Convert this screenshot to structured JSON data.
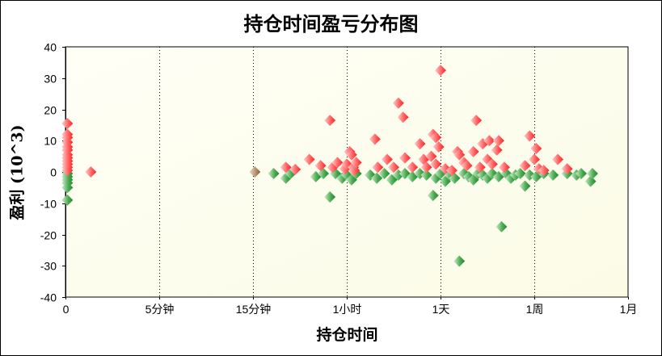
{
  "chart_data": {
    "type": "scatter",
    "title": "持仓时间盈亏分布图",
    "xlabel": "持仓时间",
    "ylabel": "盈利 (10^3)",
    "ylim": [
      -40,
      40
    ],
    "yticks": [
      40,
      30,
      20,
      10,
      0,
      -10,
      -20,
      -30,
      -40
    ],
    "xticks": [
      "0",
      "5分钟",
      "15分钟",
      "1小时",
      "1天",
      "1周",
      "1月"
    ],
    "x_scale_note": "x values expressed as position along categorical tick index (0=0, 1=5分钟, 2=15分钟, 3=1小时, 4=1天, 5=1周, 6=1月)",
    "grid": "vertical dotted lines at each x tick",
    "colors": {
      "profit": "#ff3b3b",
      "loss": "#2e9a3a",
      "breakeven": "#a0703c",
      "plot_bg": "#fffff0"
    },
    "series": [
      {
        "name": "盈利",
        "color": "#ff3b3b",
        "points": [
          [
            0.02,
            15.5
          ],
          [
            0.02,
            12
          ],
          [
            0.02,
            11
          ],
          [
            0.02,
            9.5
          ],
          [
            0.02,
            8
          ],
          [
            0.02,
            7
          ],
          [
            0.02,
            5.5
          ],
          [
            0.02,
            4.5
          ],
          [
            0.02,
            3.5
          ],
          [
            0.02,
            2.5
          ],
          [
            0.02,
            1.5
          ],
          [
            0.02,
            0.5
          ],
          [
            0.27,
            0
          ],
          [
            2.35,
            1.5
          ],
          [
            2.45,
            0.8
          ],
          [
            2.6,
            4
          ],
          [
            2.72,
            2
          ],
          [
            2.82,
            16.5
          ],
          [
            2.85,
            1.5
          ],
          [
            2.9,
            3
          ],
          [
            2.98,
            1
          ],
          [
            3.03,
            6.5
          ],
          [
            3.05,
            5.5
          ],
          [
            3.0,
            2.5
          ],
          [
            3.07,
            1.5
          ],
          [
            3.08,
            0.5
          ],
          [
            3.1,
            3
          ],
          [
            3.3,
            10.5
          ],
          [
            3.33,
            1.5
          ],
          [
            3.43,
            4
          ],
          [
            3.5,
            1.5
          ],
          [
            3.55,
            22
          ],
          [
            3.6,
            17.5
          ],
          [
            3.62,
            4.5
          ],
          [
            3.7,
            1.5
          ],
          [
            3.78,
            9
          ],
          [
            3.82,
            4
          ],
          [
            3.85,
            1.5
          ],
          [
            3.92,
            12
          ],
          [
            3.95,
            11
          ],
          [
            3.98,
            8
          ],
          [
            3.9,
            5
          ],
          [
            3.95,
            2.5
          ],
          [
            4.0,
            32.5
          ],
          [
            4.05,
            1
          ],
          [
            4.12,
            0.5
          ],
          [
            4.18,
            6.5
          ],
          [
            4.2,
            5.5
          ],
          [
            4.25,
            3
          ],
          [
            4.28,
            2
          ],
          [
            4.35,
            6.5
          ],
          [
            4.38,
            16.5
          ],
          [
            4.42,
            1.5
          ],
          [
            4.45,
            9
          ],
          [
            4.5,
            4
          ],
          [
            4.52,
            10
          ],
          [
            4.55,
            2.5
          ],
          [
            4.6,
            7
          ],
          [
            4.62,
            10
          ],
          [
            4.68,
            1.5
          ],
          [
            4.9,
            2
          ],
          [
            4.95,
            11.5
          ],
          [
            5.0,
            4
          ],
          [
            5.02,
            7.5
          ],
          [
            5.05,
            1
          ],
          [
            5.1,
            0.5
          ],
          [
            5.25,
            4
          ],
          [
            5.35,
            1
          ]
        ]
      },
      {
        "name": "亏损",
        "color": "#2e9a3a",
        "points": [
          [
            0.02,
            -0.5
          ],
          [
            0.02,
            -1.5
          ],
          [
            0.02,
            -2.5
          ],
          [
            0.02,
            -3.5
          ],
          [
            0.02,
            -5
          ],
          [
            0.02,
            -9
          ],
          [
            2.22,
            -0.5
          ],
          [
            2.35,
            -2
          ],
          [
            2.4,
            -0.5
          ],
          [
            2.67,
            -1.5
          ],
          [
            2.75,
            -0.5
          ],
          [
            2.82,
            -8
          ],
          [
            2.88,
            -0.5
          ],
          [
            2.95,
            -2
          ],
          [
            3.0,
            -1
          ],
          [
            3.05,
            -2.5
          ],
          [
            3.1,
            -0.5
          ],
          [
            3.25,
            -1
          ],
          [
            3.32,
            -2
          ],
          [
            3.4,
            -0.5
          ],
          [
            3.48,
            -2.5
          ],
          [
            3.55,
            -1
          ],
          [
            3.62,
            -0.5
          ],
          [
            3.7,
            -1.5
          ],
          [
            3.78,
            -0.5
          ],
          [
            3.85,
            -1
          ],
          [
            3.92,
            -7.5
          ],
          [
            3.95,
            -2
          ],
          [
            4.0,
            -0.5
          ],
          [
            4.05,
            -3
          ],
          [
            4.1,
            -1
          ],
          [
            4.15,
            -2
          ],
          [
            4.2,
            -28.5
          ],
          [
            4.25,
            -0.5
          ],
          [
            4.3,
            -1.5
          ],
          [
            4.35,
            -2.5
          ],
          [
            4.4,
            -0.5
          ],
          [
            4.45,
            -1
          ],
          [
            4.5,
            -2
          ],
          [
            4.55,
            -0.5
          ],
          [
            4.62,
            -1.5
          ],
          [
            4.65,
            -17.5
          ],
          [
            4.7,
            -0.5
          ],
          [
            4.75,
            -2
          ],
          [
            4.8,
            -1
          ],
          [
            4.85,
            -0.5
          ],
          [
            4.9,
            -4.5
          ],
          [
            4.95,
            -1
          ],
          [
            5.02,
            -1.5
          ],
          [
            5.1,
            -0.5
          ],
          [
            5.2,
            -1
          ],
          [
            5.35,
            -0.5
          ],
          [
            5.45,
            -1
          ],
          [
            5.5,
            -0.5
          ],
          [
            5.6,
            -3
          ],
          [
            5.62,
            -0.5
          ]
        ]
      },
      {
        "name": "持平",
        "color": "#a0703c",
        "points": [
          [
            2.02,
            0
          ]
        ]
      }
    ]
  },
  "ui": {
    "title": "持仓时间盈亏分布图",
    "xlabel": "持仓时间",
    "ylabel": "盈利 (10^3)",
    "xticks": [
      "0",
      "5分钟",
      "15分钟",
      "1小时",
      "1天",
      "1周",
      "1月"
    ],
    "yticks": [
      "40",
      "30",
      "20",
      "10",
      "0",
      "-10",
      "-20",
      "-30",
      "-40"
    ]
  }
}
